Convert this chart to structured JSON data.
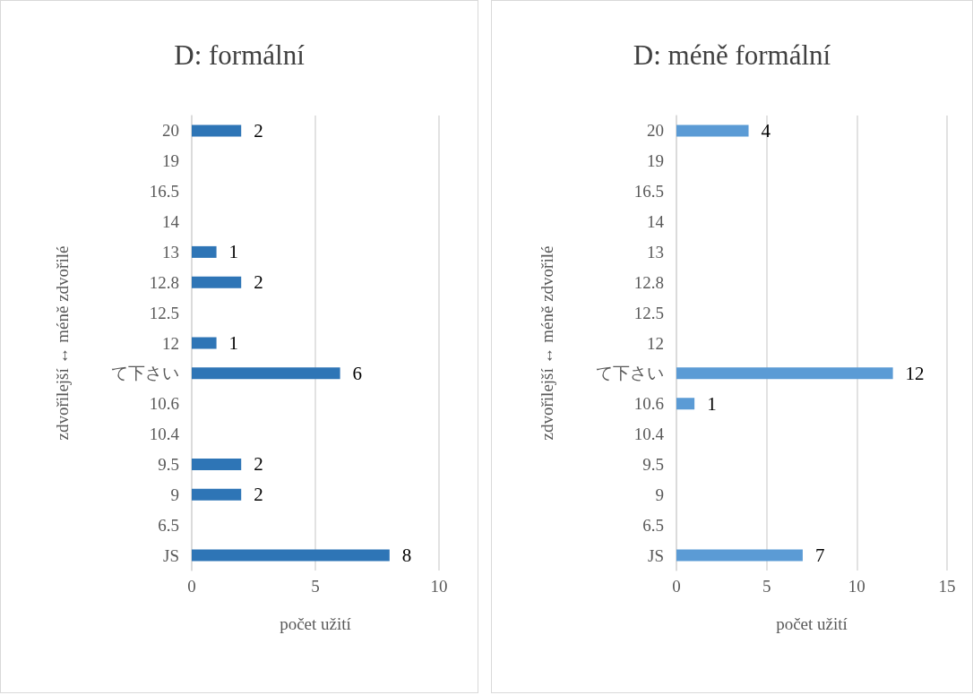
{
  "chart_data": [
    {
      "type": "bar",
      "title": "D: formální",
      "orientation": "horizontal",
      "xlabel": "počet užití",
      "ylabel": "zdvořilejší ↔ méně zdvořilé",
      "categories": [
        "20",
        "19",
        "16.5",
        "14",
        "13",
        "12.8",
        "12.5",
        "12",
        "て下さい",
        "10.6",
        "10.4",
        "9.5",
        "9",
        "6.5",
        "JS"
      ],
      "values": [
        2,
        null,
        null,
        null,
        1,
        2,
        null,
        1,
        6,
        null,
        null,
        2,
        2,
        null,
        8
      ],
      "color": "#2e75b6",
      "xlim": [
        0,
        10
      ],
      "xticks": [
        0,
        5,
        10
      ],
      "grid": "x",
      "data_labels": true
    },
    {
      "type": "bar",
      "title": "D: méně formální",
      "orientation": "horizontal",
      "xlabel": "počet užití",
      "ylabel": "zdvořilejší ↔ méně zdvořilé",
      "categories": [
        "20",
        "19",
        "16.5",
        "14",
        "13",
        "12.8",
        "12.5",
        "12",
        "て下さい",
        "10.6",
        "10.4",
        "9.5",
        "9",
        "6.5",
        "JS"
      ],
      "values": [
        4,
        null,
        null,
        null,
        null,
        null,
        null,
        null,
        12,
        1,
        null,
        null,
        null,
        null,
        7
      ],
      "color": "#5b9bd5",
      "xlim": [
        0,
        15
      ],
      "xticks": [
        0,
        5,
        10,
        15
      ],
      "grid": "x",
      "data_labels": true
    }
  ]
}
